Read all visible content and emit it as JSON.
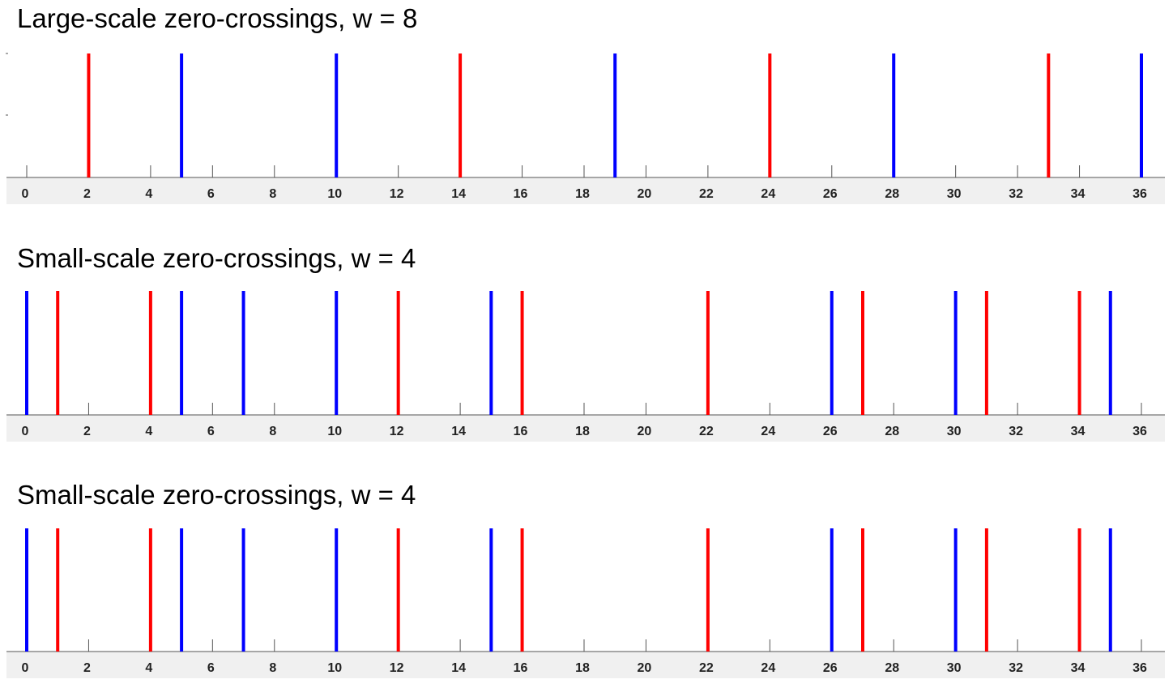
{
  "chart_data": [
    {
      "type": "stem",
      "title": "Large-scale zero-crossings, w = 8",
      "xlim": [
        0,
        36
      ],
      "xticks": [
        0,
        2,
        4,
        6,
        8,
        10,
        12,
        14,
        16,
        18,
        20,
        22,
        24,
        26,
        28,
        30,
        32,
        34,
        36
      ],
      "series": [
        {
          "name": "red",
          "color": "#ff0000",
          "x": [
            2,
            14,
            24,
            33
          ]
        },
        {
          "name": "blue",
          "color": "#0000ff",
          "x": [
            5,
            10,
            19,
            28,
            36
          ]
        }
      ]
    },
    {
      "type": "stem",
      "title": "Small-scale zero-crossings, w = 4",
      "xlim": [
        0,
        36
      ],
      "xticks": [
        0,
        2,
        4,
        6,
        8,
        10,
        12,
        14,
        16,
        18,
        20,
        22,
        24,
        26,
        28,
        30,
        32,
        34,
        36
      ],
      "series": [
        {
          "name": "red",
          "color": "#ff0000",
          "x": [
            1,
            4,
            12,
            16,
            22,
            27,
            31,
            34
          ]
        },
        {
          "name": "blue",
          "color": "#0000ff",
          "x": [
            0,
            5,
            7,
            10,
            15,
            26,
            30,
            35
          ]
        }
      ]
    },
    {
      "type": "stem",
      "title": "Small-scale zero-crossings, w = 4",
      "xlim": [
        0,
        36
      ],
      "xticks": [
        0,
        2,
        4,
        6,
        8,
        10,
        12,
        14,
        16,
        18,
        20,
        22,
        24,
        26,
        28,
        30,
        32,
        34,
        36
      ],
      "series": [
        {
          "name": "red",
          "color": "#ff0000",
          "x": [
            1,
            4,
            12,
            16,
            22,
            27,
            31,
            34
          ]
        },
        {
          "name": "blue",
          "color": "#0000ff",
          "x": [
            0,
            5,
            7,
            10,
            15,
            26,
            30,
            35
          ]
        }
      ]
    }
  ]
}
